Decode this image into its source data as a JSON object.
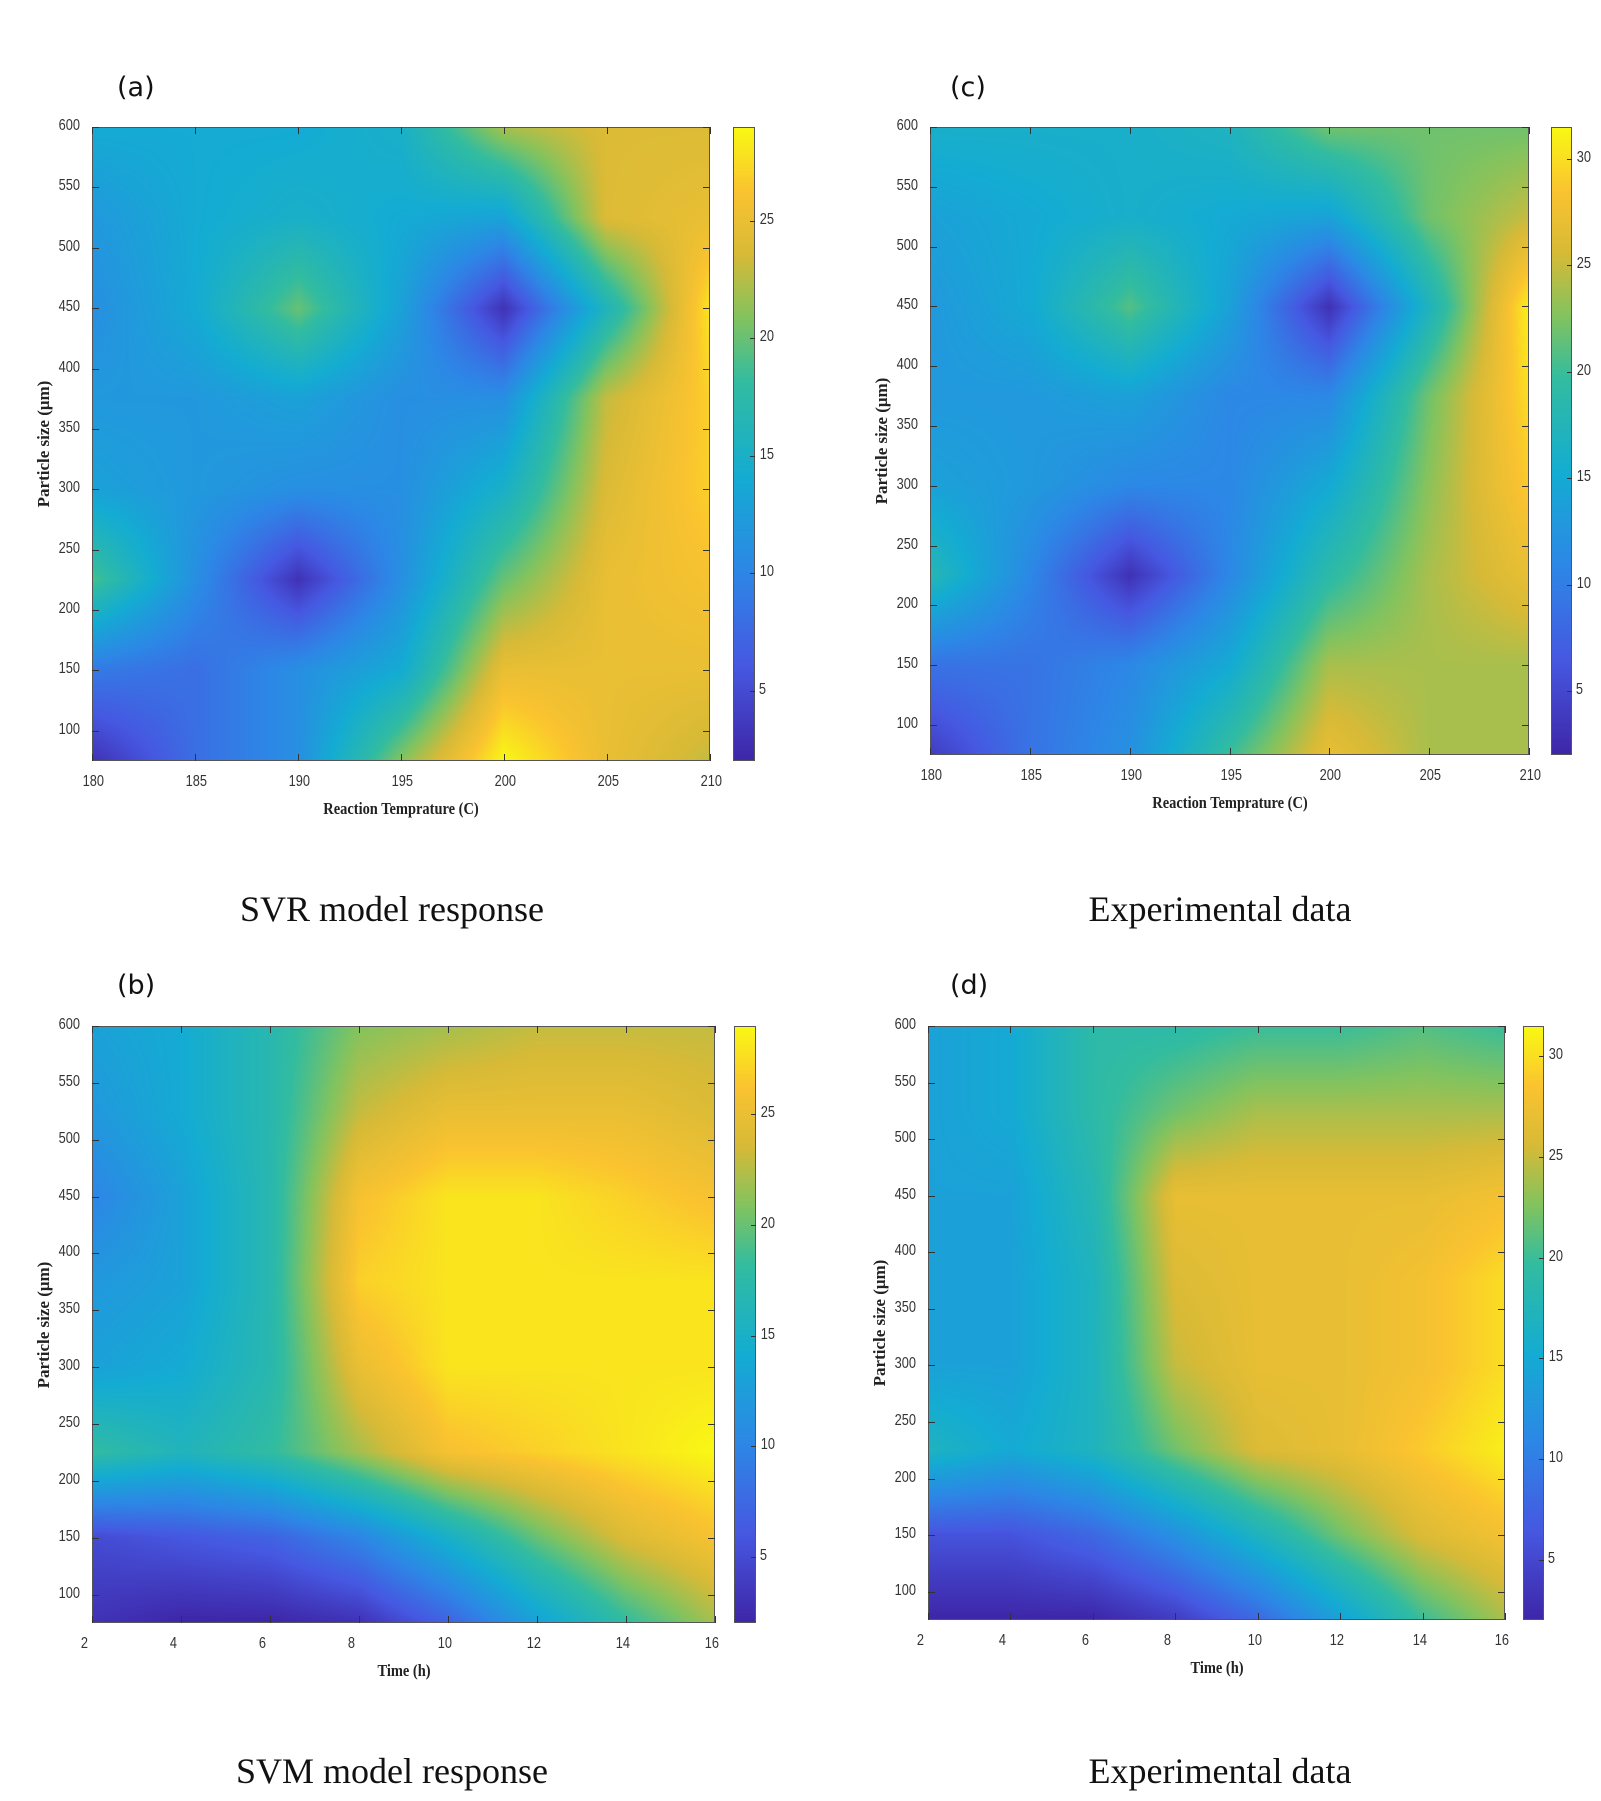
{
  "chart_data": [
    {
      "id": "a",
      "type": "heatmap",
      "panel_label": "(a)",
      "caption": "SVR model response",
      "xlabel": "Reaction Temprature (C)",
      "ylabel": "Particle size (μm)",
      "xlim": [
        180,
        210
      ],
      "ylim": [
        75,
        600
      ],
      "xticks": [
        180,
        185,
        190,
        195,
        200,
        205,
        210
      ],
      "yticks": [
        100,
        150,
        200,
        250,
        300,
        350,
        400,
        450,
        500,
        550,
        600
      ],
      "clim": [
        2,
        29
      ],
      "cticks": [
        5,
        10,
        15,
        20,
        25
      ],
      "x": [
        180,
        185,
        190,
        195,
        200,
        205,
        210
      ],
      "y": [
        75,
        150,
        225,
        300,
        375,
        450,
        525,
        600
      ],
      "z": [
        [
          3,
          8,
          11,
          21,
          29,
          25,
          23
        ],
        [
          9,
          8,
          11,
          14,
          25,
          25,
          25
        ],
        [
          19,
          11,
          3,
          11,
          20,
          25,
          26
        ],
        [
          13,
          12,
          11,
          11,
          15,
          24,
          27
        ],
        [
          12,
          12,
          13,
          11,
          11,
          23,
          27
        ],
        [
          11,
          14,
          20,
          13,
          3,
          16,
          28
        ],
        [
          12,
          14,
          15,
          14,
          13,
          24,
          25
        ],
        [
          14,
          14,
          14,
          15,
          22,
          24,
          24
        ]
      ]
    },
    {
      "id": "c",
      "type": "heatmap",
      "panel_label": "(c)",
      "caption": "Experimental data",
      "xlabel": "Reaction Temprature (C)",
      "ylabel": "Particle size (μm)",
      "xlim": [
        180,
        210
      ],
      "ylim": [
        75,
        600
      ],
      "xticks": [
        180,
        185,
        190,
        195,
        200,
        205,
        210
      ],
      "yticks": [
        100,
        150,
        200,
        250,
        300,
        350,
        400,
        450,
        500,
        550,
        600
      ],
      "clim": [
        2,
        31.5
      ],
      "cticks": [
        5,
        10,
        15,
        20,
        25,
        30
      ],
      "x": [
        180,
        185,
        190,
        195,
        200,
        205,
        210
      ],
      "y": [
        75,
        150,
        225,
        300,
        375,
        450,
        525,
        600
      ],
      "z": [
        [
          4,
          9,
          12,
          20,
          27,
          24,
          24
        ],
        [
          9,
          9,
          11,
          15,
          24,
          24,
          24
        ],
        [
          18,
          11,
          3,
          11,
          19,
          24,
          27
        ],
        [
          14,
          13,
          11,
          11,
          15,
          23,
          29
        ],
        [
          13,
          13,
          14,
          11,
          11,
          22,
          30
        ],
        [
          13,
          15,
          21,
          14,
          3,
          17,
          31
        ],
        [
          14,
          15,
          16,
          15,
          14,
          22,
          25
        ],
        [
          16,
          16,
          16,
          17,
          22,
          22,
          22
        ]
      ]
    },
    {
      "id": "b",
      "type": "heatmap",
      "panel_label": "(b)",
      "caption": "SVM model response",
      "xlabel": "Time (h)",
      "ylabel": "Particle size (μm)",
      "xlim": [
        2,
        16
      ],
      "ylim": [
        75,
        600
      ],
      "xticks": [
        2,
        4,
        6,
        8,
        10,
        12,
        14,
        16
      ],
      "yticks": [
        100,
        150,
        200,
        250,
        300,
        350,
        400,
        450,
        500,
        550,
        600
      ],
      "clim": [
        2,
        29
      ],
      "cticks": [
        5,
        10,
        15,
        20,
        25
      ],
      "x": [
        2,
        4,
        6,
        8,
        10,
        12,
        14,
        16
      ],
      "y": [
        75,
        150,
        225,
        300,
        375,
        450,
        525,
        600
      ],
      "z": [
        [
          3,
          2,
          2,
          3,
          7,
          13,
          18,
          22
        ],
        [
          5,
          6,
          7,
          10,
          15,
          20,
          24,
          26
        ],
        [
          18,
          16,
          18,
          22,
          26,
          27,
          28,
          29
        ],
        [
          13,
          14,
          17,
          25,
          28,
          28,
          28,
          28
        ],
        [
          12,
          13,
          17,
          27,
          28,
          28,
          28,
          28
        ],
        [
          10,
          13,
          17,
          26,
          28,
          28,
          27,
          26
        ],
        [
          12,
          14,
          17,
          23,
          25,
          25,
          25,
          24
        ],
        [
          13,
          14,
          17,
          21,
          22,
          23,
          23,
          23
        ]
      ]
    },
    {
      "id": "d",
      "type": "heatmap",
      "panel_label": "(d)",
      "caption": "Experimental data",
      "xlabel": "Time (h)",
      "ylabel": "Particle size (μm)",
      "xlim": [
        2,
        16
      ],
      "ylim": [
        75,
        600
      ],
      "xticks": [
        2,
        4,
        6,
        8,
        10,
        12,
        14,
        16
      ],
      "yticks": [
        100,
        150,
        200,
        250,
        300,
        350,
        400,
        450,
        500,
        550,
        600
      ],
      "clim": [
        2,
        31.5
      ],
      "cticks": [
        5,
        10,
        15,
        20,
        25,
        30
      ],
      "x": [
        2,
        4,
        6,
        8,
        10,
        12,
        14,
        16
      ],
      "y": [
        75,
        150,
        225,
        300,
        375,
        450,
        525,
        600
      ],
      "z": [
        [
          2,
          2,
          2,
          4,
          8,
          14,
          20,
          24
        ],
        [
          6,
          6,
          8,
          12,
          17,
          22,
          26,
          28
        ],
        [
          17,
          15,
          17,
          22,
          26,
          27,
          29,
          31
        ],
        [
          14,
          14,
          17,
          25,
          27,
          27,
          28,
          30
        ],
        [
          14,
          14,
          17,
          26,
          27,
          27,
          28,
          30
        ],
        [
          14,
          14,
          18,
          27,
          27,
          27,
          27,
          28
        ],
        [
          14,
          15,
          19,
          22,
          24,
          24,
          24,
          24
        ],
        [
          14,
          15,
          19,
          19,
          20,
          20,
          21,
          20
        ]
      ]
    }
  ]
}
